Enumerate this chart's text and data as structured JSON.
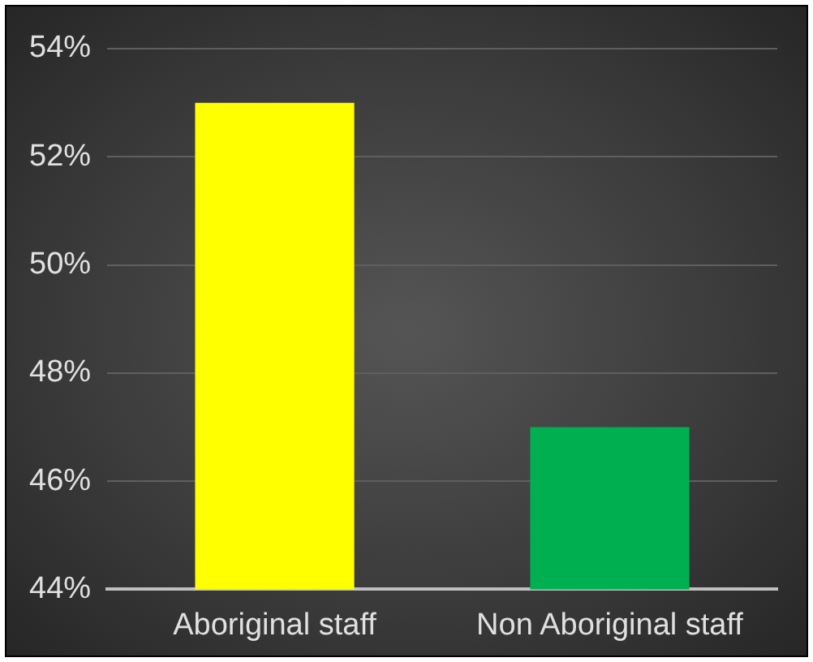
{
  "chart_data": {
    "type": "bar",
    "categories": [
      "Aboriginal staff",
      "Non Aboriginal staff"
    ],
    "values": [
      53,
      47
    ],
    "colors": [
      "#ffff00",
      "#00b050"
    ],
    "ylim": [
      44,
      54
    ],
    "yticks": [
      {
        "value": 44,
        "label": "44%"
      },
      {
        "value": 46,
        "label": "46%"
      },
      {
        "value": 48,
        "label": "48%"
      },
      {
        "value": 50,
        "label": "50%"
      },
      {
        "value": 52,
        "label": "52%"
      },
      {
        "value": 54,
        "label": "54%"
      }
    ],
    "grid": "y",
    "legend": false
  }
}
